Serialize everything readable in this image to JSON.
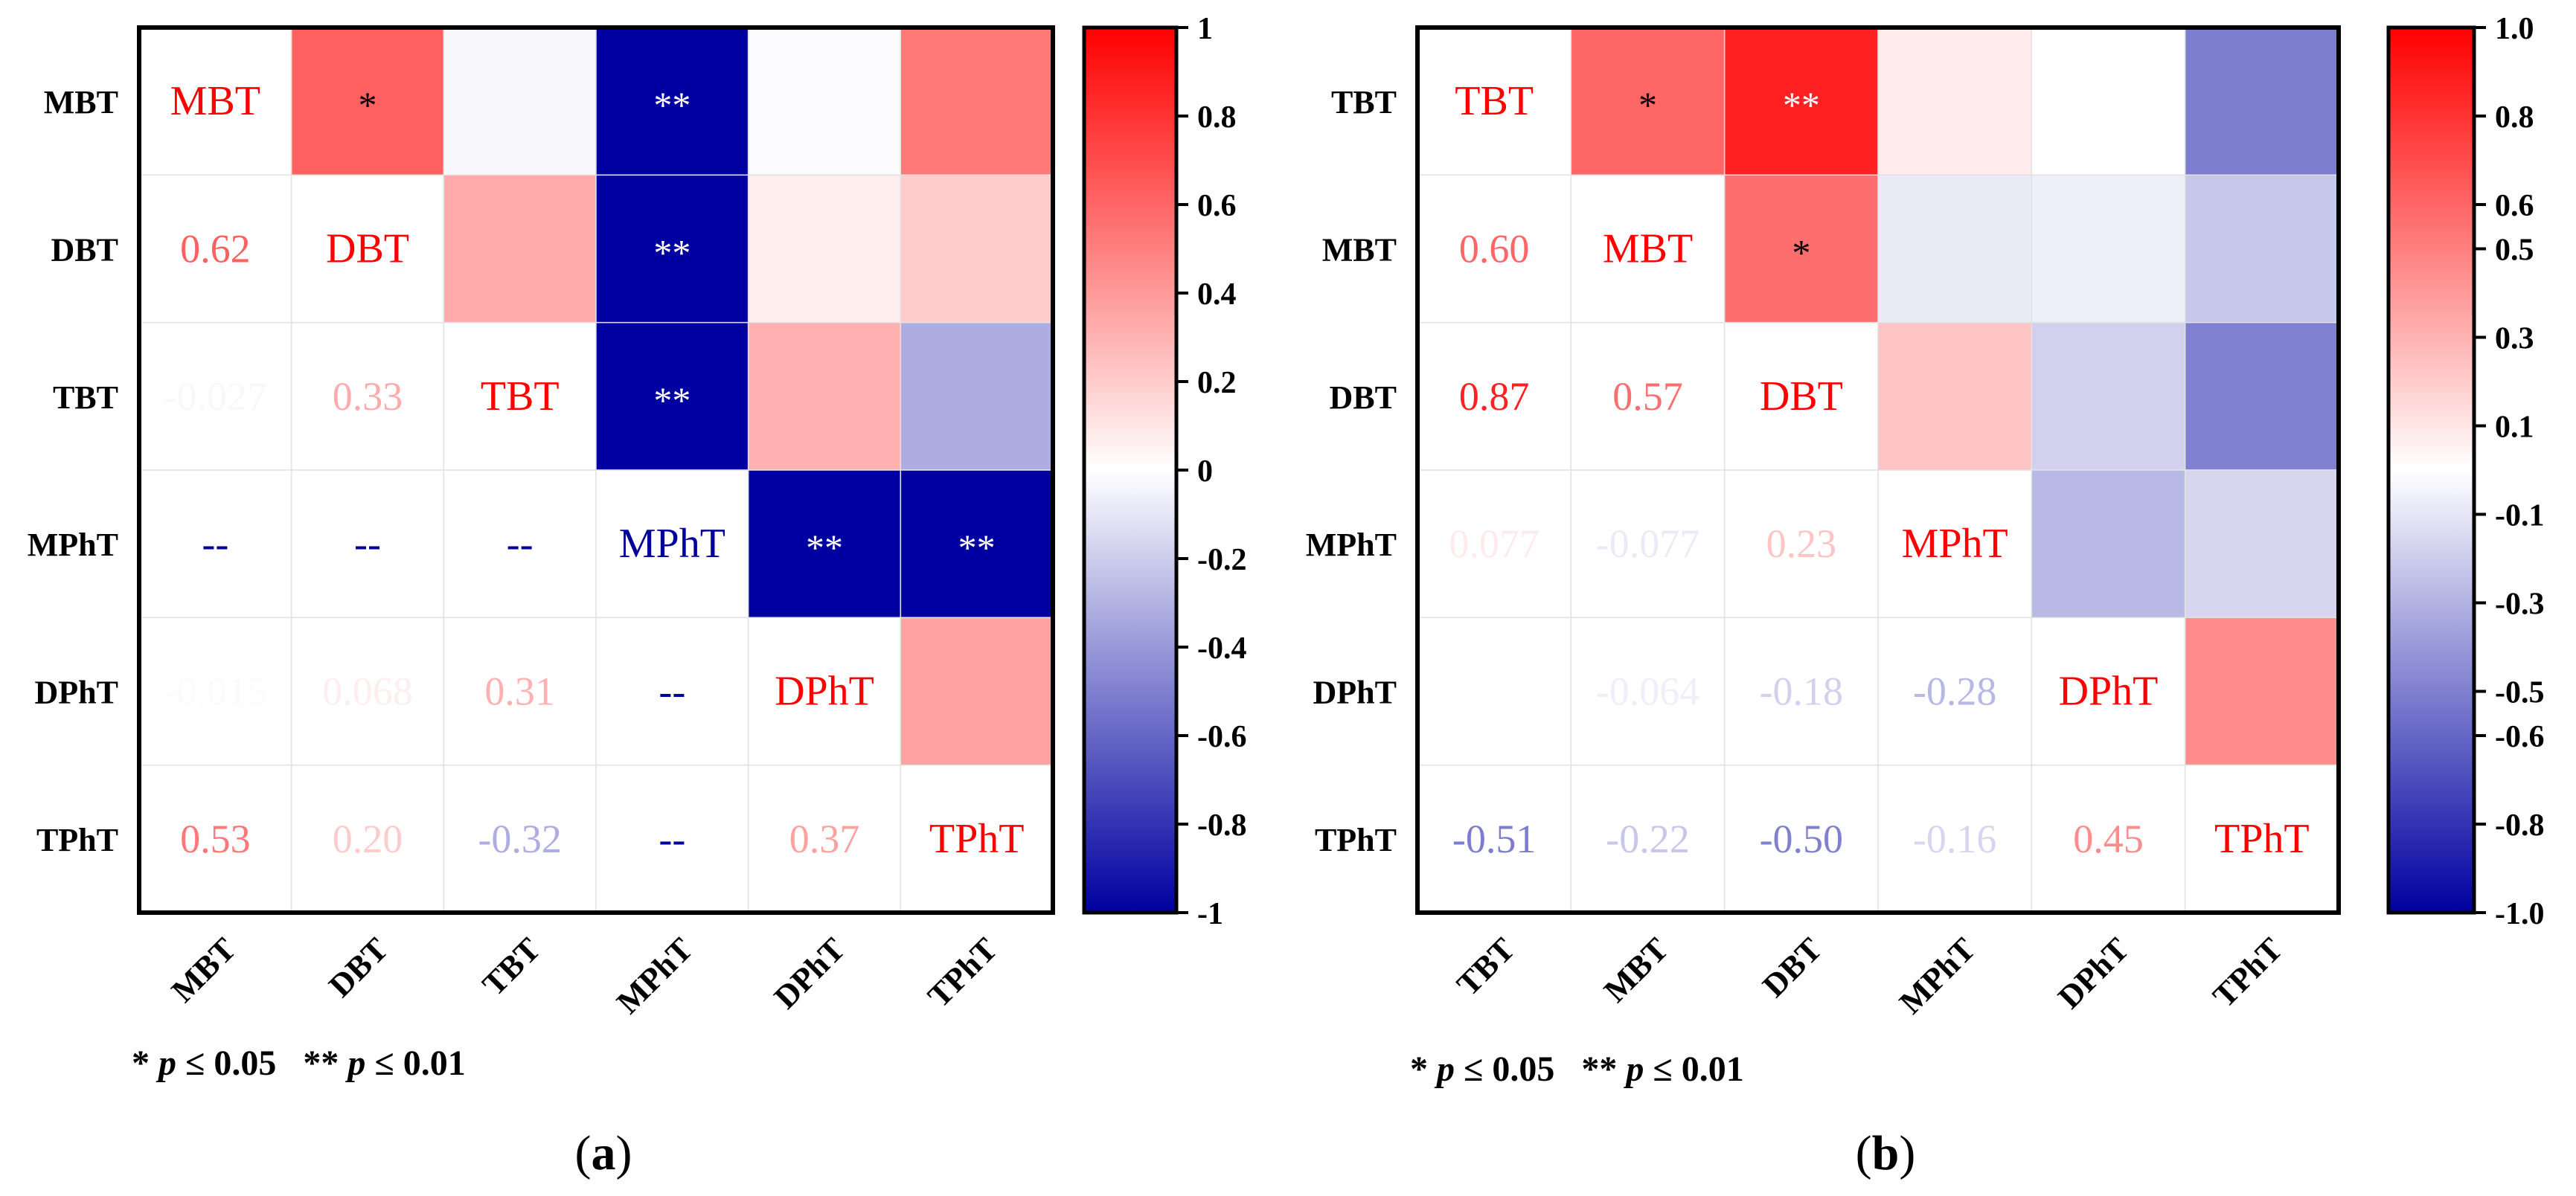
{
  "chart_data": [
    {
      "type": "heatmap",
      "panel_label": "a",
      "labels": [
        "MBT",
        "DBT",
        "TBT",
        "MPhT",
        "DPhT",
        "TPhT"
      ],
      "colorbar": {
        "min": -1,
        "max": 1,
        "ticks": [
          "1",
          "0.8",
          "0.6",
          "0.4",
          "0.2",
          "0",
          "-0.2",
          "-0.4",
          "-0.6",
          "-0.8",
          "-1"
        ],
        "tick_values": [
          1,
          0.8,
          0.6,
          0.4,
          0.2,
          0,
          -0.2,
          -0.4,
          -0.6,
          -0.8,
          -1
        ]
      },
      "upper_colors": [
        [
          null,
          0.62,
          -0.027,
          -1.0,
          -0.015,
          0.53
        ],
        [
          null,
          null,
          0.33,
          -1.0,
          0.068,
          0.2
        ],
        [
          null,
          null,
          null,
          -1.0,
          0.31,
          -0.32
        ],
        [
          null,
          null,
          null,
          null,
          -1.0,
          -1.0
        ],
        [
          null,
          null,
          null,
          null,
          null,
          0.37
        ],
        [
          null,
          null,
          null,
          null,
          null,
          null
        ]
      ],
      "upper_marks": [
        [
          "",
          "*",
          "",
          "**",
          "",
          ""
        ],
        [
          "",
          "",
          "",
          "**",
          "",
          ""
        ],
        [
          "",
          "",
          "",
          "**",
          "",
          ""
        ],
        [
          "",
          "",
          "",
          "",
          "**",
          "**"
        ],
        [
          "",
          "",
          "",
          "",
          "",
          ""
        ],
        [
          "",
          "",
          "",
          "",
          "",
          ""
        ]
      ],
      "lower_text": [
        [
          "",
          "",
          "",
          "",
          "",
          ""
        ],
        [
          "0.62",
          "",
          "",
          "",
          "",
          ""
        ],
        [
          "-0.027",
          "0.33",
          "",
          "",
          "",
          ""
        ],
        [
          "--",
          "--",
          "--",
          "",
          "",
          ""
        ],
        [
          "-0.015",
          "0.068",
          "0.31",
          "--",
          "",
          ""
        ],
        [
          "0.53",
          "0.20",
          "-0.32",
          "--",
          "0.37",
          ""
        ]
      ],
      "lower_values": [
        [
          null,
          null,
          null,
          null,
          null,
          null
        ],
        [
          0.62,
          null,
          null,
          null,
          null,
          null
        ],
        [
          -0.027,
          0.33,
          null,
          null,
          null,
          null
        ],
        [
          null,
          null,
          null,
          null,
          null,
          null
        ],
        [
          -0.015,
          0.068,
          0.31,
          null,
          null,
          null
        ],
        [
          0.53,
          0.2,
          -0.32,
          null,
          0.37,
          null
        ]
      ],
      "footnote": {
        "mark1": "* ",
        "p1": "p",
        "cond1": " ≤ 0.05  ",
        "mark2": "** ",
        "p2": "p",
        "cond2": " ≤ 0.01"
      }
    },
    {
      "type": "heatmap",
      "panel_label": "b",
      "labels": [
        "TBT",
        "MBT",
        "DBT",
        "MPhT",
        "DPhT",
        "TPhT"
      ],
      "colorbar": {
        "min": -1,
        "max": 1,
        "ticks": [
          "1.0",
          "0.8",
          "0.6",
          "0.5",
          "0.3",
          "0.1",
          "-0.1",
          "-0.3",
          "-0.5",
          "-0.6",
          "-0.8",
          "-1.0"
        ],
        "tick_values": [
          1.0,
          0.8,
          0.6,
          0.5,
          0.3,
          0.1,
          -0.1,
          -0.3,
          -0.5,
          -0.6,
          -0.8,
          -1.0
        ]
      },
      "upper_colors": [
        [
          null,
          0.6,
          0.87,
          0.077,
          0.0,
          -0.51
        ],
        [
          null,
          null,
          0.57,
          -0.077,
          -0.064,
          -0.22
        ],
        [
          null,
          null,
          null,
          0.23,
          -0.18,
          -0.5
        ],
        [
          null,
          null,
          null,
          null,
          -0.28,
          -0.16
        ],
        [
          null,
          null,
          null,
          null,
          null,
          0.45
        ],
        [
          null,
          null,
          null,
          null,
          null,
          null
        ]
      ],
      "upper_marks": [
        [
          "",
          "*",
          "**",
          "",
          "",
          ""
        ],
        [
          "",
          "",
          "*",
          "",
          "",
          ""
        ],
        [
          "",
          "",
          "",
          "",
          "",
          ""
        ],
        [
          "",
          "",
          "",
          "",
          "",
          ""
        ],
        [
          "",
          "",
          "",
          "",
          "",
          ""
        ],
        [
          "",
          "",
          "",
          "",
          "",
          ""
        ]
      ],
      "lower_text": [
        [
          "",
          "",
          "",
          "",
          "",
          ""
        ],
        [
          "0.60",
          "",
          "",
          "",
          "",
          ""
        ],
        [
          "0.87",
          "0.57",
          "",
          "",
          "",
          ""
        ],
        [
          "0.077",
          "-0.077",
          "0.23",
          "",
          "",
          ""
        ],
        [
          "",
          "-0.064",
          "-0.18",
          "-0.28",
          "",
          ""
        ],
        [
          "-0.51",
          "-0.22",
          "-0.50",
          "-0.16",
          "0.45",
          ""
        ]
      ],
      "lower_values": [
        [
          null,
          null,
          null,
          null,
          null,
          null
        ],
        [
          0.6,
          null,
          null,
          null,
          null,
          null
        ],
        [
          0.87,
          0.57,
          null,
          null,
          null,
          null
        ],
        [
          0.077,
          -0.077,
          0.23,
          null,
          null,
          null
        ],
        [
          null,
          -0.064,
          -0.18,
          -0.28,
          null,
          null
        ],
        [
          -0.51,
          -0.22,
          -0.5,
          -0.16,
          0.45,
          null
        ]
      ],
      "footnote": {
        "mark1": "* ",
        "p1": "p",
        "cond1": " ≤ 0.05  ",
        "mark2": "** ",
        "p2": "p",
        "cond2": " ≤ 0.01"
      }
    }
  ],
  "colors": {
    "positive": "#ff0000",
    "negative": "#0000a0",
    "neutral": "#ffffff",
    "diagonal_label": "#ff0000",
    "diagonal_label_blue": "#00009b",
    "dash": "#00009b",
    "frame": "#000000",
    "grid": "#e2e2e2",
    "mark_dark": "#ffffff",
    "mark_light": "#000000"
  }
}
